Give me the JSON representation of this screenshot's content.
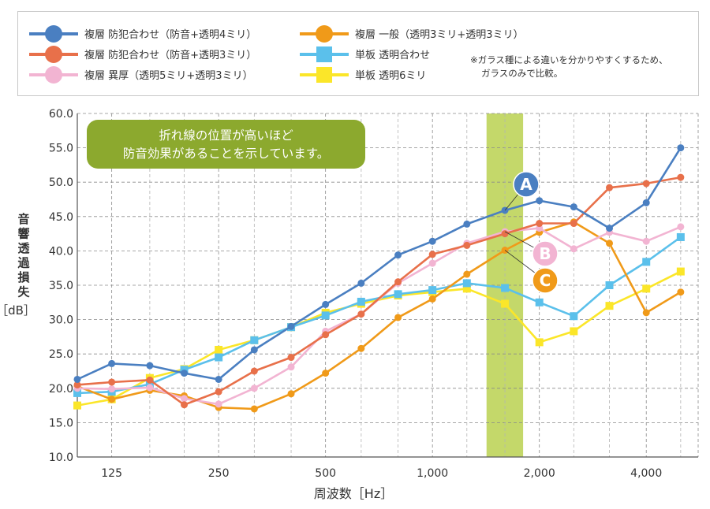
{
  "chart_data": {
    "type": "line",
    "xlabel": "周波数［Hz］",
    "ylabel": [
      "音",
      "響",
      "透",
      "過",
      "損",
      "失"
    ],
    "yunit": "［dB］",
    "ylim": [
      10,
      60
    ],
    "y_ticks": [
      "10.0",
      "15.0",
      "20.0",
      "25.0",
      "30.0",
      "35.0",
      "40.0",
      "45.0",
      "50.0",
      "55.0",
      "60.0"
    ],
    "x_scale": "log2",
    "xlim_hz": [
      100,
      5600
    ],
    "x_tick_values": [
      125,
      250,
      500,
      1000,
      2000,
      4000
    ],
    "x_tick_labels": [
      "125",
      "250",
      "500",
      "1,000",
      "2,000",
      "4,000"
    ],
    "x_points_hz": [
      100,
      125,
      160,
      200,
      250,
      315,
      400,
      500,
      630,
      800,
      1000,
      1250,
      1600,
      2000,
      2500,
      3150,
      4000,
      5000
    ],
    "grid": true,
    "highlight_band_hz": [
      1420,
      1800
    ],
    "highlight_color": "#c4d86a",
    "annotation_box": {
      "lines": [
        "折れ線の位置が高いほど",
        "防音効果があることを示しています。"
      ],
      "color": "#8ca92e"
    },
    "callouts": [
      {
        "label": "A",
        "series": 0,
        "color": "#4a7fc1"
      },
      {
        "label": "B",
        "series": 2,
        "color": "#f2b4d2"
      },
      {
        "label": "C",
        "series": 3,
        "color": "#f09a19"
      }
    ],
    "legend": {
      "placement": "top",
      "note": [
        "※ガラス種による違いを分かりやすくするため、",
        "ガラスのみで比較。"
      ]
    },
    "series": [
      {
        "name": "複層 防犯合わせ（防音+透明4ミリ）",
        "color": "#4a7fc1",
        "marker": "circle",
        "values": [
          21.3,
          23.6,
          23.3,
          22.2,
          21.3,
          25.6,
          29.0,
          32.2,
          35.3,
          39.4,
          41.4,
          43.9,
          45.9,
          47.3,
          46.4,
          43.3,
          47.0,
          55.0
        ]
      },
      {
        "name": "複層 防犯合わせ（防音+透明3ミリ）",
        "color": "#e8704a",
        "marker": "circle",
        "values": [
          20.5,
          20.9,
          21.2,
          17.6,
          19.5,
          22.5,
          24.5,
          27.8,
          30.8,
          35.5,
          39.5,
          40.8,
          42.5,
          44.0,
          44.0,
          49.2,
          49.8,
          50.7
        ]
      },
      {
        "name": "複層 異厚（透明5ミリ+透明3ミリ）",
        "color": "#f2b4d2",
        "marker": "circle",
        "values": [
          20.0,
          19.9,
          20.1,
          18.5,
          17.7,
          20.0,
          23.1,
          28.3,
          30.8,
          35.3,
          38.2,
          41.1,
          42.8,
          43.3,
          40.3,
          42.7,
          41.4,
          43.5
        ]
      },
      {
        "name": "複層 一般（透明3ミリ+透明3ミリ）",
        "color": "#f09a19",
        "marker": "circle",
        "values": [
          20.3,
          18.4,
          19.7,
          18.9,
          17.2,
          17.0,
          19.2,
          22.2,
          25.8,
          30.3,
          33.0,
          36.6,
          40.1,
          42.7,
          44.2,
          41.1,
          31.0,
          34.0
        ]
      },
      {
        "name": "単板 透明合わせ",
        "color": "#5bc0eb",
        "marker": "square",
        "values": [
          19.3,
          19.5,
          20.6,
          22.7,
          24.5,
          27.0,
          28.9,
          30.6,
          32.6,
          33.7,
          34.3,
          35.3,
          34.6,
          32.5,
          30.5,
          35.0,
          38.4,
          42.0
        ]
      },
      {
        "name": "単板 透明6ミリ",
        "color": "#fbe629",
        "marker": "square",
        "values": [
          17.5,
          18.4,
          21.5,
          22.8,
          25.6,
          27.0,
          28.9,
          31.0,
          32.3,
          33.5,
          34.0,
          34.5,
          32.3,
          26.7,
          28.3,
          32.0,
          34.5,
          37.0
        ]
      }
    ]
  }
}
